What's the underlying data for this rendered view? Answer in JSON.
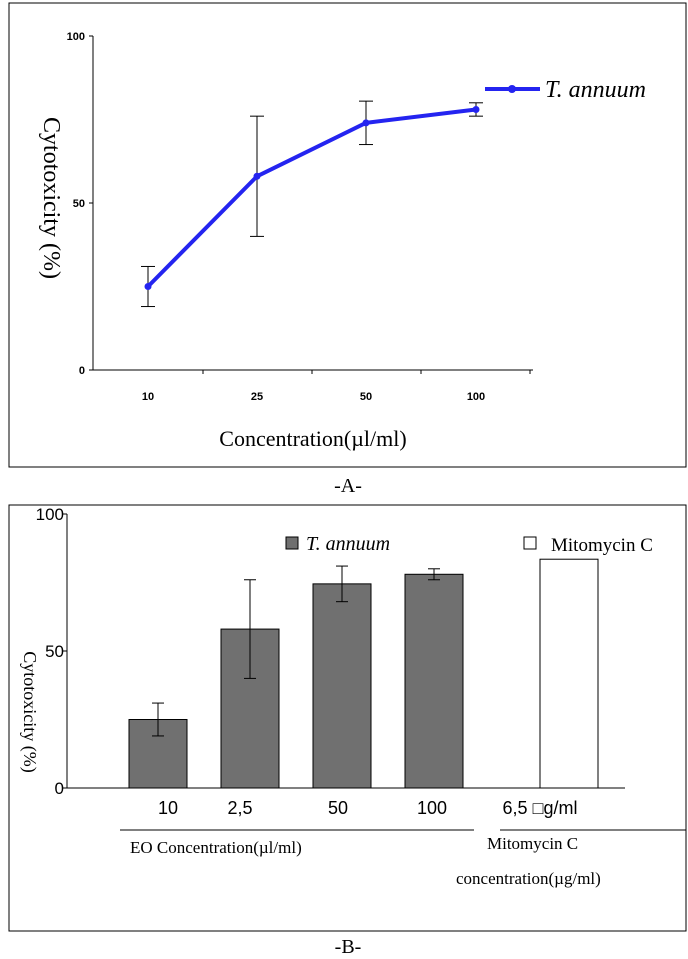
{
  "colors": {
    "line_series": "#2424f0",
    "bar_series": "#707070",
    "mitomycin_bar": "#ffffff",
    "axis": "#000000",
    "frame": "#000000"
  },
  "panels": {
    "a_label": "-A-",
    "b_label": "-B-"
  },
  "chart_data": [
    {
      "type": "line",
      "title": "",
      "xlabel": "Concentration(µl/ml)",
      "ylabel": "Cytotoxicity (%)",
      "ylim": [
        0,
        100
      ],
      "y_ticks": [
        "0",
        "50",
        "100"
      ],
      "categories": [
        "10",
        "25",
        "50",
        "100"
      ],
      "legend_position": "top-right",
      "grid": false,
      "series": [
        {
          "name": "T. annuum",
          "values": [
            25,
            58,
            74,
            78
          ],
          "errors": [
            6,
            18,
            6.5,
            2
          ]
        }
      ]
    },
    {
      "type": "bar",
      "title": "",
      "ylabel": "Cytotoxicity (%)",
      "ylim": [
        0,
        100
      ],
      "y_ticks": [
        "0",
        "50",
        "100"
      ],
      "categories": [
        "10",
        "2,5",
        "50",
        "100",
        "6,5 □g/ml"
      ],
      "xlabel_groups": [
        "EO Concentration(µl/ml)",
        "Mitomycin C concentration(µg/ml)"
      ],
      "legend_position": "top",
      "grid": false,
      "series": [
        {
          "name": "T. annuum",
          "values": [
            25,
            58,
            74.5,
            78,
            null
          ],
          "errors": [
            6,
            18,
            6.5,
            2,
            null
          ]
        },
        {
          "name": "Mitomycin C",
          "values": [
            null,
            null,
            null,
            null,
            83.5
          ]
        }
      ]
    }
  ]
}
